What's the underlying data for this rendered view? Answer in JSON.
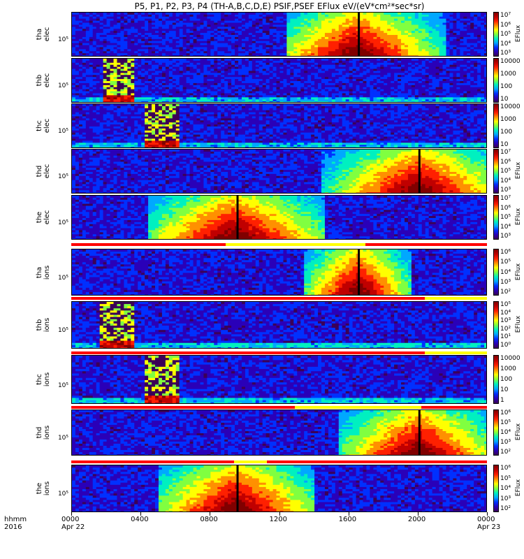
{
  "title": "P5, P1, P2, P3, P4 (TH-A,B,C,D,E) PSIF,PSEF EFlux eV/(eV*cm²*sec*sr)",
  "x_axis": {
    "label_row1": "hhmm",
    "label_row2": "2016",
    "ticks": [
      "0000",
      "0400",
      "0800",
      "1200",
      "1600",
      "2000",
      "0000"
    ],
    "dates": [
      "Apr 22",
      "Apr 23"
    ]
  },
  "colors": {
    "cmap": [
      "#3b0057",
      "#2a00b8",
      "#0030ff",
      "#00a8ff",
      "#00f0c0",
      "#80ff40",
      "#ffff00",
      "#ff9000",
      "#ff2000",
      "#c00000",
      "#800000"
    ],
    "flag_red": "#ff0000",
    "flag_yellow": "#ffff00"
  },
  "panels": [
    {
      "label": "tha\nelec",
      "ytick": "10⁵",
      "cb_ticks": [
        "10⁷",
        "10⁶",
        "10⁵",
        "10⁴",
        "10³"
      ],
      "cb_name": "EFlux"
    },
    {
      "label": "thb\nelec",
      "ytick": "10⁵",
      "cb_ticks": [
        "10000",
        "1000",
        "100",
        "10"
      ],
      "cb_name": ""
    },
    {
      "label": "thc\nelec",
      "ytick": "10⁵",
      "cb_ticks": [
        "10000",
        "1000",
        "100",
        "10"
      ],
      "cb_name": ""
    },
    {
      "label": "thd\nelec",
      "ytick": "10⁵",
      "cb_ticks": [
        "10⁷",
        "10⁶",
        "10⁵",
        "10⁴",
        "10³"
      ],
      "cb_name": "EFlux"
    },
    {
      "label": "the\nelec",
      "ytick": "10⁵",
      "cb_ticks": [
        "10⁷",
        "10⁶",
        "10⁵",
        "10⁴",
        "10³"
      ],
      "cb_name": "EFlux"
    },
    {
      "label": "tha\nions",
      "ytick": "10⁵",
      "cb_ticks": [
        "10⁶",
        "10⁵",
        "10⁴",
        "10³",
        "10²"
      ],
      "cb_name": "EFlux"
    },
    {
      "label": "thb\nions",
      "ytick": "10⁵",
      "cb_ticks": [
        "10⁵",
        "10⁴",
        "10³",
        "10²",
        "10¹",
        "10⁰"
      ],
      "cb_name": "EFlux"
    },
    {
      "label": "thc\nions",
      "ytick": "10⁵",
      "cb_ticks": [
        "10000",
        "1000",
        "100",
        "10",
        "1"
      ],
      "cb_name": ""
    },
    {
      "label": "thd\nions",
      "ytick": "10⁵",
      "cb_ticks": [
        "10⁶",
        "10⁵",
        "10⁴",
        "10³",
        "10²"
      ],
      "cb_name": "EFlux"
    },
    {
      "label": "the\nions",
      "ytick": "10⁵",
      "cb_ticks": [
        "10⁶",
        "10⁵",
        "10⁴",
        "10³",
        "10²"
      ],
      "cb_name": "EFlux"
    }
  ],
  "chart_data": {
    "type": "heatmap",
    "title": "P5, P1, P2, P3, P4 (TH-A,B,C,D,E) PSIF,PSEF EFlux eV/(eV*cm²*sec*sr)",
    "xlabel": "hhmm 2016",
    "x_range_hours": [
      0,
      24
    ],
    "x_ticks": [
      "0000",
      "0400",
      "0800",
      "1200",
      "1600",
      "2000",
      "0000"
    ],
    "series": [
      {
        "name": "tha elec",
        "hot_intervals_hours": [
          [
            12.5,
            21.5
          ]
        ],
        "peak_hour": 16.5
      },
      {
        "name": "thb elec",
        "burst_interval_hours": [
          1.8,
          3.6
        ]
      },
      {
        "name": "thc elec",
        "burst_interval_hours": [
          4.3,
          6.2
        ]
      },
      {
        "name": "thd elec",
        "hot_intervals_hours": [
          [
            14.5,
            24.0
          ]
        ],
        "peak_hour": 20.0
      },
      {
        "name": "the elec",
        "hot_intervals_hours": [
          [
            4.5,
            14.5
          ]
        ],
        "peak_hour": 9.5
      },
      {
        "name": "tha ions",
        "hot_intervals_hours": [
          [
            13.5,
            19.5
          ]
        ],
        "peak_hour": 16.5
      },
      {
        "name": "thb ions",
        "burst_interval_hours": [
          1.7,
          3.6
        ]
      },
      {
        "name": "thc ions",
        "burst_interval_hours": [
          4.2,
          6.2
        ]
      },
      {
        "name": "thd ions",
        "hot_intervals_hours": [
          [
            15.5,
            24.0
          ]
        ],
        "peak_hour": 20.0
      },
      {
        "name": "the ions",
        "hot_intervals_hours": [
          [
            5.0,
            14.0
          ]
        ],
        "peak_hour": 9.5
      }
    ],
    "flag_bars": [
      {
        "segments": [
          [
            0,
            8.9,
            "red"
          ],
          [
            8.9,
            17.0,
            "yellow"
          ],
          [
            17.0,
            24,
            "red"
          ]
        ]
      },
      {
        "segments": [
          [
            0,
            20.4,
            "red"
          ],
          [
            20.4,
            24,
            "yellow"
          ]
        ]
      },
      {
        "segments": [
          [
            0,
            20.4,
            "red"
          ],
          [
            20.4,
            24,
            "yellow"
          ]
        ]
      },
      {
        "segments": [
          [
            0,
            12.9,
            "red"
          ],
          [
            12.9,
            20.2,
            "yellow"
          ],
          [
            20.2,
            24,
            "red"
          ]
        ]
      },
      {
        "segments": [
          [
            0,
            9.4,
            "red"
          ],
          [
            9.4,
            11.3,
            "yellow"
          ],
          [
            11.3,
            24,
            "red"
          ]
        ]
      }
    ]
  }
}
